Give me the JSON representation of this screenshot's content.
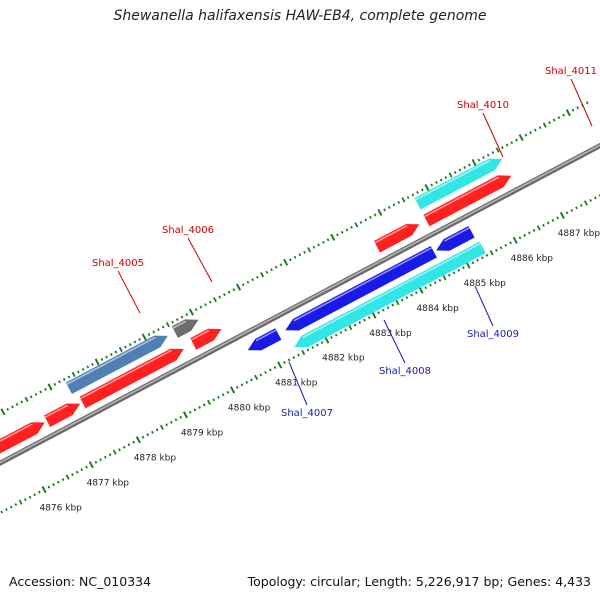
{
  "title": "Shewanella halifaxensis HAW-EB4, complete genome",
  "footer": {
    "accession": "Accession: NC_010334",
    "summary": "Topology: circular; Length: 5,226,917 bp; Genes: 4,433"
  },
  "colors": {
    "background": "#ffffff",
    "forward_gene": "#ff2020",
    "forward_label": "#cc0000",
    "reverse_gene_blue": "#1a1ae6",
    "reverse_gene_cyan": "#33e6e6",
    "reverse_label": "#1a1ab3",
    "steelblue_gene": "#4f80b3",
    "gray_gene": "#6e6e6e",
    "backbone": "#909090",
    "tick": "#1e7a1e"
  },
  "axis": {
    "unit": "kbp",
    "ticks": [
      {
        "kbp": 4876,
        "label": "4876 kbp"
      },
      {
        "kbp": 4877,
        "label": "4877 kbp"
      },
      {
        "kbp": 4878,
        "label": "4878 kbp"
      },
      {
        "kbp": 4879,
        "label": "4879 kbp"
      },
      {
        "kbp": 4880,
        "label": "4880 kbp"
      },
      {
        "kbp": 4881,
        "label": "4881 kbp"
      },
      {
        "kbp": 4882,
        "label": "4882 kbp"
      },
      {
        "kbp": 4883,
        "label": "4883 kbp"
      },
      {
        "kbp": 4884,
        "label": "4884 kbp"
      },
      {
        "kbp": 4885,
        "label": "4885 kbp"
      },
      {
        "kbp": 4886,
        "label": "4886 kbp"
      },
      {
        "kbp": 4887,
        "label": "4887 kbp"
      }
    ]
  },
  "genes": [
    {
      "strand": "forward",
      "color": "red",
      "start_kbp": 4875.55,
      "end_kbp": 4876.6
    },
    {
      "strand": "forward",
      "color": "red",
      "start_kbp": 4876.65,
      "end_kbp": 4877.35
    },
    {
      "strand": "forward",
      "color": "red",
      "start_kbp": 4877.4,
      "end_kbp": 4879.55
    },
    {
      "strand": "forward",
      "color": "red",
      "start_kbp": 4879.75,
      "end_kbp": 4880.35
    },
    {
      "strand": "forward",
      "color": "red",
      "start_kbp": 4883.65,
      "end_kbp": 4884.55
    },
    {
      "strand": "forward",
      "color": "red",
      "start_kbp": 4884.7,
      "end_kbp": 4886.5
    },
    {
      "strand": "forward_outer",
      "color": "steelblue",
      "start_kbp": 4877.3,
      "end_kbp": 4879.4,
      "label": "Shal_4005"
    },
    {
      "strand": "forward_outer",
      "color": "gray",
      "start_kbp": 4879.55,
      "end_kbp": 4880.05,
      "label": "Shal_4006"
    },
    {
      "strand": "forward_outer",
      "color": "cyan",
      "start_kbp": 4884.7,
      "end_kbp": 4886.5,
      "label": "Shal_4011"
    },
    {
      "strand": "reverse",
      "color": "blue",
      "start_kbp": 4880.6,
      "end_kbp": 4881.25,
      "label": "Shal_4007"
    },
    {
      "strand": "reverse",
      "color": "blue",
      "start_kbp": 4881.4,
      "end_kbp": 4884.55
    },
    {
      "strand": "reverse",
      "color": "blue",
      "start_kbp": 4884.6,
      "end_kbp": 4885.35
    },
    {
      "strand": "reverse_inner",
      "color": "cyan",
      "start_kbp": 4881.4,
      "end_kbp": 4885.4,
      "label": "Shal_4008"
    }
  ],
  "labels": [
    {
      "text": "Shal_4005",
      "strand": "forward"
    },
    {
      "text": "Shal_4006",
      "strand": "forward"
    },
    {
      "text": "Shal_4010",
      "strand": "forward"
    },
    {
      "text": "Shal_4011",
      "strand": "forward"
    },
    {
      "text": "Shal_4007",
      "strand": "reverse"
    },
    {
      "text": "Shal_4008",
      "strand": "reverse"
    },
    {
      "text": "Shal_4009",
      "strand": "reverse"
    }
  ]
}
